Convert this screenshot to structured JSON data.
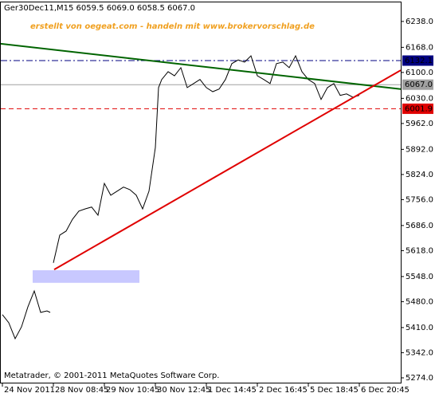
{
  "chart_data": {
    "type": "line",
    "title": "Ger30Dec11,M15  6059.5 6069.0 6058.5 6067.0",
    "subtitle": "erstellt von oegeat.com - handeln mit www.brokervorschlag.de",
    "footer": "Metatrader, © 2001-2011 MetaQuotes Software Corp.",
    "xlim": [
      0,
      125
    ],
    "xticks": [
      {
        "value": 0,
        "label": "24 Nov 2011"
      },
      {
        "value": 16,
        "label": "28 Nov 08:45"
      },
      {
        "value": 32,
        "label": "29 Nov 10:45"
      },
      {
        "value": 48,
        "label": "30 Nov 12:45"
      },
      {
        "value": 64,
        "label": "1 Dec 14:45"
      },
      {
        "value": 80,
        "label": "2 Dec 16:45"
      },
      {
        "value": 96,
        "label": "5 Dec 18:45"
      },
      {
        "value": 112,
        "label": "6 Dec 20:45"
      }
    ],
    "ylim": [
      5261,
      6296
    ],
    "yticks": [
      {
        "value": 6238,
        "label": "6238.0"
      },
      {
        "value": 6168,
        "label": "6168.0"
      },
      {
        "value": 6100,
        "label": "6100.0"
      },
      {
        "value": 6030,
        "label": "6030.0"
      },
      {
        "value": 5962,
        "label": "5962.0"
      },
      {
        "value": 5892,
        "label": "5892.0"
      },
      {
        "value": 5824,
        "label": "5824.0"
      },
      {
        "value": 5756,
        "label": "5756.0"
      },
      {
        "value": 5686,
        "label": "5686.0"
      },
      {
        "value": 5618,
        "label": "5618.0"
      },
      {
        "value": 5548,
        "label": "5548.0"
      },
      {
        "value": 5480,
        "label": "5480.0"
      },
      {
        "value": 5410,
        "label": "5410.0"
      },
      {
        "value": 5342,
        "label": "5342.0"
      },
      {
        "value": 5274,
        "label": "5274.0"
      }
    ],
    "series": [
      {
        "color": "#000000",
        "x": [
          0,
          2,
          4,
          6,
          8,
          10,
          12,
          14,
          15,
          15.5,
          16,
          18,
          20,
          22,
          24,
          26,
          28,
          30,
          32,
          34,
          36,
          38,
          40,
          42,
          44,
          46,
          48,
          49,
          50,
          52,
          54,
          56,
          58,
          60,
          62,
          64,
          66,
          68,
          70,
          72,
          74,
          76,
          78,
          80,
          82,
          84,
          86,
          88,
          90,
          92,
          94,
          96,
          98,
          100,
          102,
          104,
          106,
          108,
          110,
          112
        ],
        "values": [
          5445,
          5423,
          5380,
          5412,
          5466,
          5509,
          5451,
          5455,
          5451,
          null,
          5585,
          5660,
          5671,
          5703,
          5725,
          5731,
          5736,
          5714,
          5800,
          5768,
          5779,
          5790,
          5783,
          5768,
          5731,
          5779,
          5897,
          6059,
          6081,
          6102,
          6091,
          6113,
          6059,
          6070,
          6081,
          6059,
          6048,
          6055,
          6081,
          6124,
          6134,
          6128,
          6145,
          6091,
          6081,
          6070,
          6124,
          6128,
          6113,
          6145,
          6102,
          6081,
          6070,
          6027,
          6059,
          6070,
          6038,
          6042,
          6033,
          6038
        ]
      }
    ],
    "trendlines": [
      {
        "color": "#006400",
        "x": [
          -0.75,
          125
        ],
        "values": [
          6178,
          6055
        ]
      },
      {
        "color": "#e00000",
        "x": [
          16.25,
          125
        ],
        "values": [
          5567,
          6106
        ]
      }
    ],
    "zones": [
      {
        "color": "#c8c8ff",
        "x": [
          9.5,
          43
        ],
        "values": [
          5565,
          5531
        ]
      }
    ],
    "levels": [
      {
        "value": 6132.1,
        "label": "6132.1",
        "color": "#000080",
        "dash": "8 3 2 3"
      },
      {
        "value": 6067,
        "label": "6067.0",
        "color": "#a0a0a0",
        "dash": "none"
      },
      {
        "value": 6001.9,
        "label": "6001.9",
        "color": "#e00000",
        "dash": "6 4"
      }
    ]
  }
}
